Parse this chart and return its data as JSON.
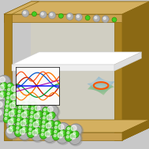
{
  "gold": "#C8A050",
  "gold_dark": "#8B6914",
  "gold_mid": "#A88020",
  "gold_light": "#D4B060",
  "bg": "#C8C8C8",
  "interior_bg": "#D8D5C8",
  "white": "#FFFFFF",
  "white_shade": "#E8E8E8",
  "ni_color": "#B0B0B0",
  "ni_highlight": "#E0E0E0",
  "ni_shadow": "#888888",
  "b_color": "#44CC22",
  "b_edge": "#228800",
  "bond_color": "#A0A0A0",
  "figsize": [
    1.89,
    1.89
  ],
  "dpi": 100
}
